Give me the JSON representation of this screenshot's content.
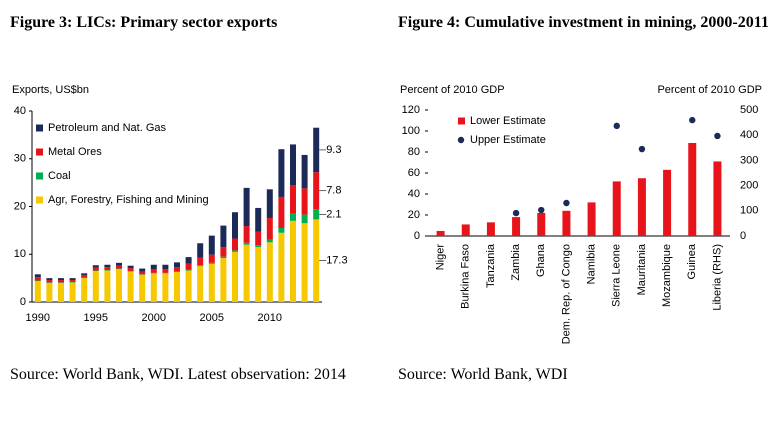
{
  "chart_data": [
    {
      "type": "bar",
      "stacked": true,
      "title": "Figure 3: LICs: Primary sector exports",
      "ylabel": "Exports, US$bn",
      "source": "Source: World Bank, WDI. Latest observation: 2014",
      "categories": [
        "1990",
        null,
        null,
        null,
        null,
        "1995",
        null,
        null,
        null,
        null,
        "2000",
        null,
        null,
        null,
        null,
        "2005",
        null,
        null,
        null,
        null,
        "2010",
        null,
        null,
        null,
        null
      ],
      "series": [
        {
          "name": "Agr, Forestry, Fishing and Mining",
          "color": "#f5c800",
          "values": [
            4.4,
            4.0,
            4.0,
            4.1,
            5.0,
            6.5,
            6.6,
            6.9,
            6.4,
            5.7,
            6.0,
            6.0,
            6.3,
            6.6,
            7.5,
            8.0,
            9.2,
            10.5,
            12.0,
            11.5,
            12.5,
            14.5,
            17.0,
            16.5,
            17.3
          ]
        },
        {
          "name": "Coal",
          "color": "#00b050",
          "values": [
            0.1,
            0.1,
            0.1,
            0.1,
            0.1,
            0.1,
            0.1,
            0.1,
            0.1,
            0.1,
            0.1,
            0.1,
            0.1,
            0.2,
            0.2,
            0.2,
            0.3,
            0.3,
            0.4,
            0.4,
            0.6,
            1.0,
            1.5,
            1.8,
            2.1
          ]
        },
        {
          "name": "Metal Ores",
          "color": "#e8141c",
          "values": [
            0.7,
            0.5,
            0.5,
            0.4,
            0.5,
            0.6,
            0.6,
            0.6,
            0.6,
            0.6,
            0.8,
            0.8,
            0.9,
            1.2,
            1.6,
            1.7,
            2.0,
            2.5,
            3.5,
            2.8,
            4.5,
            6.5,
            6.0,
            5.5,
            7.8
          ]
        },
        {
          "name": "Petroleum and Nat. Gas",
          "color": "#1b2a57",
          "values": [
            0.6,
            0.4,
            0.4,
            0.4,
            0.4,
            0.5,
            0.5,
            0.6,
            0.5,
            0.6,
            0.9,
            0.9,
            1.0,
            1.4,
            3.0,
            4.0,
            4.5,
            5.5,
            8.0,
            5.0,
            6.0,
            10.0,
            8.5,
            7.0,
            9.3
          ]
        }
      ],
      "last_value_labels": true,
      "ylim": [
        0,
        40
      ],
      "yticks": [
        0,
        10,
        20,
        30,
        40
      ],
      "legend": "upper left"
    },
    {
      "type": "bar",
      "title": "Figure 4: Cumulative investment in mining, 2000-2011",
      "ylabel": "Percent of 2010 GDP",
      "y2label": "Percent of 2010 GDP",
      "source": "Source: World Bank, WDI",
      "categories": [
        "Niger",
        "Burkina Faso",
        "Tanzania",
        "Zambia",
        "Ghana",
        "Dem. Rep. of Congo",
        "Namibia",
        "Sierra Leone",
        "Mauritania",
        "Mozambique",
        "Guinea",
        "Liberia (RHS)"
      ],
      "series": [
        {
          "name": "Lower Estimate",
          "color": "#e8141c",
          "values": [
            4.8,
            11,
            13,
            18,
            22,
            24,
            32,
            52,
            55,
            63,
            88.6,
            71
          ]
        },
        {
          "name": "Upper Estimate",
          "type": "scatter",
          "axis": "y2",
          "color": "#1b2a57",
          "values": [
            null,
            null,
            null,
            91,
            103,
            131,
            null,
            437,
            345,
            null,
            460,
            397
          ]
        }
      ],
      "ylim": [
        0,
        120
      ],
      "yticks": [
        0,
        20,
        40,
        60,
        80,
        100,
        120
      ],
      "y2lim": [
        0,
        500
      ],
      "y2ticks": [
        0,
        100,
        200,
        300,
        400,
        500
      ],
      "legend": "upper left"
    }
  ]
}
